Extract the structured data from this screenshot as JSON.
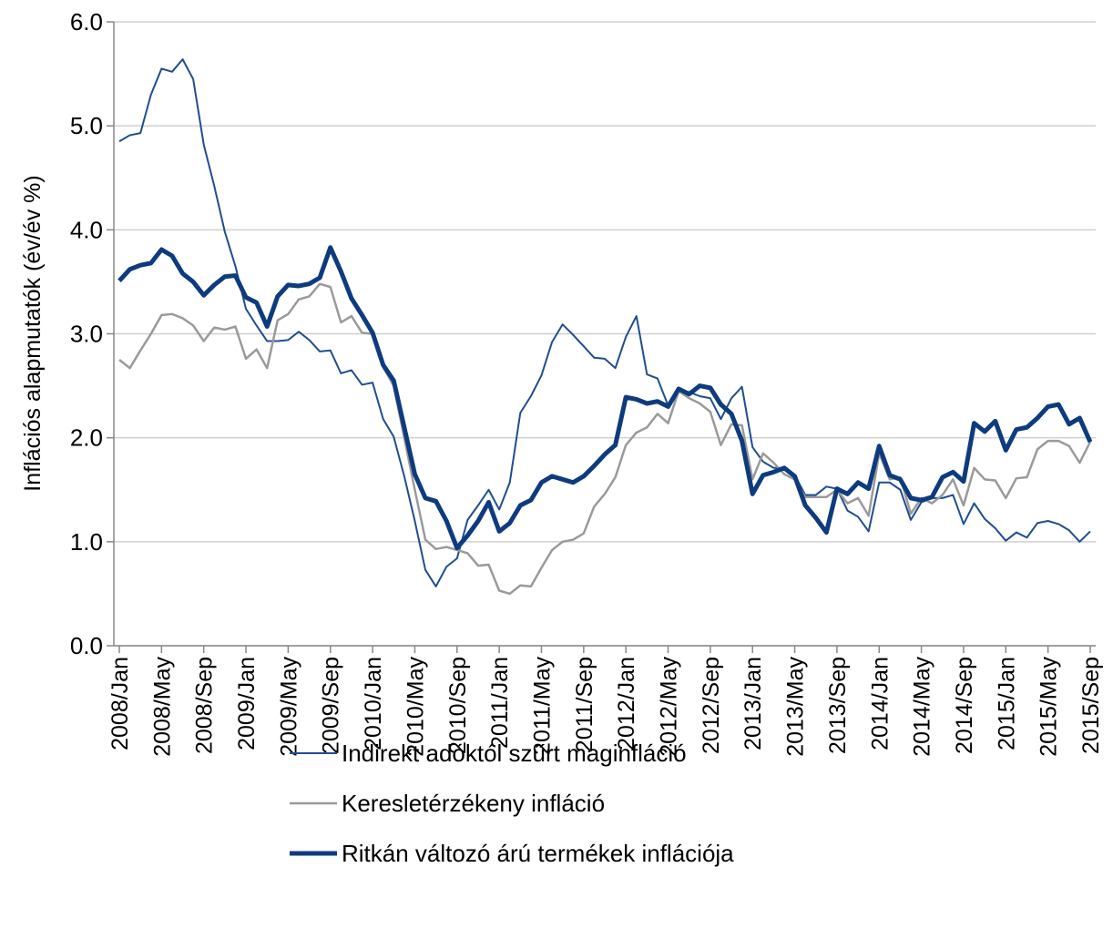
{
  "chart_data": {
    "type": "line",
    "y_label": "Inflációs alapmutatók (év/év %)",
    "categories": [
      "2008/Jan",
      null,
      null,
      null,
      "2008/May",
      null,
      null,
      null,
      "2008/Sep",
      null,
      null,
      null,
      "2009/Jan",
      null,
      null,
      null,
      "2009/May",
      null,
      null,
      null,
      "2009/Sep",
      null,
      null,
      null,
      "2010/Jan",
      null,
      null,
      null,
      "2010/May",
      null,
      null,
      null,
      "2010/Sep",
      null,
      null,
      null,
      "2011/Jan",
      null,
      null,
      null,
      "2011/May",
      null,
      null,
      null,
      "2011/Sep",
      null,
      null,
      null,
      "2012/Jan",
      null,
      null,
      null,
      "2012/May",
      null,
      null,
      null,
      "2012/Sep",
      null,
      null,
      null,
      "2013/Jan",
      null,
      null,
      null,
      "2013/May",
      null,
      null,
      null,
      "2013/Sep",
      null,
      null,
      null,
      "2014/Jan",
      null,
      null,
      null,
      "2014/May",
      null,
      null,
      null,
      "2014/Sep",
      null,
      null,
      null,
      "2015/Jan",
      null,
      null,
      null,
      "2015/May",
      null,
      null,
      null,
      "2015/Sep"
    ],
    "series": [
      {
        "name": "Indirekt adóktól szűrt maginfláció",
        "color": "#1f4e8f",
        "width": 2,
        "values": [
          4.85,
          4.91,
          4.93,
          5.3,
          5.55,
          5.52,
          5.64,
          5.45,
          4.82,
          4.42,
          3.98,
          3.65,
          3.24,
          3.08,
          2.93,
          2.93,
          2.94,
          3.02,
          2.94,
          2.83,
          2.84,
          2.62,
          2.65,
          2.51,
          2.53,
          2.18,
          2.01,
          1.63,
          1.2,
          0.73,
          0.57,
          0.76,
          0.84,
          1.21,
          1.35,
          1.5,
          1.31,
          1.57,
          2.24,
          2.4,
          2.6,
          2.92,
          3.09,
          2.99,
          2.88,
          2.77,
          2.76,
          2.67,
          2.97,
          3.17,
          2.61,
          2.57,
          2.31,
          2.45,
          2.44,
          2.4,
          2.38,
          2.18,
          2.38,
          2.49,
          1.91,
          1.77,
          1.71,
          1.71,
          1.64,
          1.45,
          1.45,
          1.53,
          1.51,
          1.3,
          1.24,
          1.1,
          1.57,
          1.57,
          1.5,
          1.21,
          1.38,
          1.42,
          1.42,
          1.45,
          1.17,
          1.37,
          1.22,
          1.13,
          1.01,
          1.09,
          1.04,
          1.18,
          1.2,
          1.17,
          1.11,
          1.0,
          1.1
        ]
      },
      {
        "name": "Keresletérzékeny infláció",
        "color": "#9a9a9a",
        "width": 2.5,
        "values": [
          2.75,
          2.67,
          2.84,
          3.0,
          3.18,
          3.19,
          3.15,
          3.08,
          2.93,
          3.06,
          3.04,
          3.07,
          2.76,
          2.85,
          2.67,
          3.13,
          3.19,
          3.33,
          3.36,
          3.48,
          3.45,
          3.11,
          3.17,
          3.01,
          3.0,
          2.68,
          2.5,
          2.0,
          1.5,
          1.02,
          0.93,
          0.95,
          0.92,
          0.89,
          0.77,
          0.78,
          0.53,
          0.5,
          0.58,
          0.57,
          0.75,
          0.92,
          1.0,
          1.02,
          1.08,
          1.34,
          1.46,
          1.62,
          1.93,
          2.05,
          2.1,
          2.23,
          2.14,
          2.45,
          2.38,
          2.33,
          2.25,
          1.93,
          2.13,
          2.12,
          1.6,
          1.85,
          1.76,
          1.65,
          1.6,
          1.43,
          1.43,
          1.43,
          1.5,
          1.37,
          1.42,
          1.25,
          1.85,
          1.6,
          1.62,
          1.27,
          1.42,
          1.37,
          1.45,
          1.6,
          1.35,
          1.71,
          1.6,
          1.59,
          1.42,
          1.61,
          1.62,
          1.89,
          1.97,
          1.97,
          1.92,
          1.76,
          1.96
        ]
      },
      {
        "name": "Ritkán változó árú termékek inflációja",
        "color": "#0e3b7e",
        "width": 5,
        "values": [
          3.51,
          3.62,
          3.66,
          3.68,
          3.81,
          3.75,
          3.58,
          3.5,
          3.37,
          3.47,
          3.55,
          3.56,
          3.35,
          3.3,
          3.07,
          3.36,
          3.47,
          3.46,
          3.48,
          3.54,
          3.83,
          3.6,
          3.34,
          3.18,
          3.01,
          2.7,
          2.55,
          2.1,
          1.65,
          1.42,
          1.39,
          1.2,
          0.94,
          1.06,
          1.2,
          1.38,
          1.1,
          1.18,
          1.35,
          1.4,
          1.57,
          1.63,
          1.6,
          1.57,
          1.63,
          1.73,
          1.84,
          1.93,
          2.39,
          2.37,
          2.33,
          2.35,
          2.3,
          2.47,
          2.42,
          2.5,
          2.48,
          2.32,
          2.23,
          1.97,
          1.46,
          1.64,
          1.67,
          1.71,
          1.63,
          1.35,
          1.23,
          1.09,
          1.51,
          1.46,
          1.57,
          1.51,
          1.92,
          1.64,
          1.6,
          1.42,
          1.4,
          1.43,
          1.62,
          1.67,
          1.58,
          2.14,
          2.06,
          2.16,
          1.88,
          2.08,
          2.1,
          2.19,
          2.3,
          2.32,
          2.13,
          2.19,
          1.96
        ]
      }
    ],
    "ylim": [
      0,
      6
    ],
    "yticks": [
      {
        "value": 0,
        "label": "0.0"
      },
      {
        "value": 1,
        "label": "1.0"
      },
      {
        "value": 2,
        "label": "2.0"
      },
      {
        "value": 3,
        "label": "3.0"
      },
      {
        "value": 4,
        "label": "4.0"
      },
      {
        "value": 5,
        "label": "5.0"
      },
      {
        "value": 6,
        "label": "6.0"
      }
    ],
    "grid": true,
    "legend": "bottom"
  }
}
